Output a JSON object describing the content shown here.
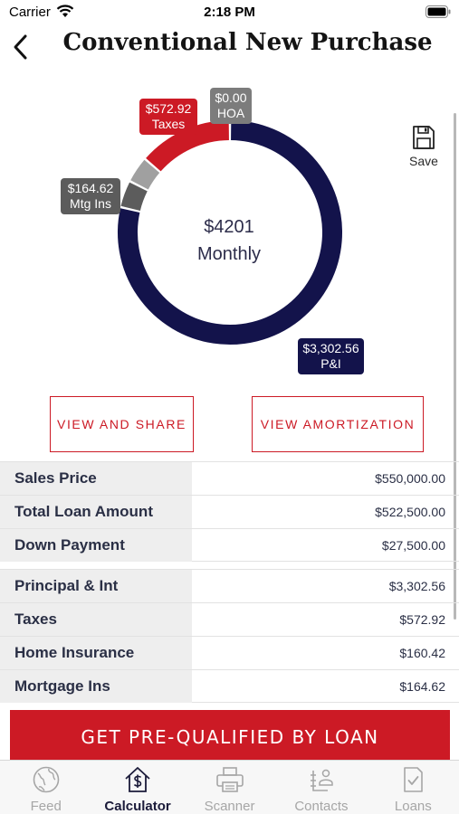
{
  "status_bar": {
    "carrier": "Carrier",
    "time": "2:18 PM"
  },
  "nav": {
    "title": "Conventional New Purchase"
  },
  "chart_data": {
    "type": "pie",
    "center_value": "$4201",
    "center_label": "Monthly",
    "segments": [
      {
        "name": "P&I",
        "value": 3302.56,
        "display": "$3,302.56",
        "color": "#13134b"
      },
      {
        "name": "Mtg Ins",
        "value": 164.62,
        "display": "$164.62",
        "color": "#5c5c5c"
      },
      {
        "name": "Home Insurance",
        "value": 160.42,
        "display": "$160.42",
        "color": "#a0a0a0"
      },
      {
        "name": "Taxes",
        "value": 572.92,
        "display": "$572.92",
        "color": "#cc1a25"
      },
      {
        "name": "HOA",
        "value": 0.0,
        "display": "$0.00",
        "color": "#7c7c7c"
      }
    ]
  },
  "tags": {
    "taxes": {
      "amount": "$572.92",
      "label": "Taxes"
    },
    "hoa": {
      "amount": "$0.00",
      "label": "HOA"
    },
    "mtg_ins": {
      "amount": "$164.62",
      "label": "Mtg Ins"
    },
    "pi": {
      "amount": "$3,302.56",
      "label": "P&I"
    }
  },
  "save": {
    "label": "Save"
  },
  "buttons": {
    "view_share": "VIEW AND SHARE",
    "view_amortization": "VIEW AMORTIZATION"
  },
  "loan_table": [
    {
      "label": "Sales Price",
      "value": "$550,000.00"
    },
    {
      "label": "Total Loan Amount",
      "value": "$522,500.00"
    },
    {
      "label": "Down Payment",
      "value": "$27,500.00"
    }
  ],
  "payment_table": [
    {
      "label": "Principal & Int",
      "value": "$3,302.56"
    },
    {
      "label": "Taxes",
      "value": "$572.92"
    },
    {
      "label": "Home Insurance",
      "value": "$160.42"
    },
    {
      "label": "Mortgage Ins",
      "value": "$164.62"
    }
  ],
  "cta": {
    "label": "GET PRE-QUALIFIED BY LOAN"
  },
  "tabs": [
    {
      "label": "Feed",
      "icon": "globe-icon"
    },
    {
      "label": "Calculator",
      "icon": "house-dollar-icon",
      "active": true
    },
    {
      "label": "Scanner",
      "icon": "printer-icon"
    },
    {
      "label": "Contacts",
      "icon": "contacts-icon"
    },
    {
      "label": "Loans",
      "icon": "document-check-icon"
    }
  ]
}
